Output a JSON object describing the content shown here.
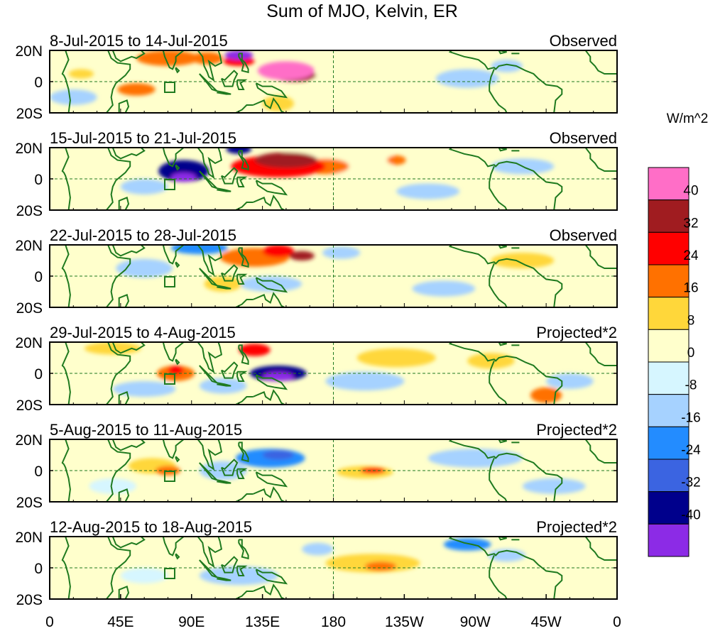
{
  "chart_data": {
    "type": "heatmap",
    "title": "Sum of MJO, Kelvin, ER",
    "units": "W/m^2",
    "colorbar": {
      "labels": [
        "40",
        "32",
        "24",
        "16",
        "8",
        "0",
        "-8",
        "-16",
        "-24",
        "-32",
        "-40"
      ],
      "colors": [
        "#ff6ec7",
        "#a01c20",
        "#ff0000",
        "#ff7100",
        "#ffd73a",
        "#ffffcc",
        "#d6f6ff",
        "#a6d2ff",
        "#238cff",
        "#3b64e1",
        "#00008c",
        "#8c2be6"
      ]
    },
    "x_ticks": [
      "0",
      "45E",
      "90E",
      "135E",
      "180",
      "135W",
      "90W",
      "45W",
      "0"
    ],
    "y_ticks": [
      "20N",
      "0",
      "20S"
    ],
    "lon_range": [
      0,
      360
    ],
    "lat_range": [
      -20,
      20
    ],
    "panels": [
      {
        "period": "8-Jul-2015 to 14-Jul-2015",
        "status": "Observed",
        "blobs": [
          [
            150,
            7,
            18,
            6,
            44
          ],
          [
            155,
            4,
            14,
            4,
            38
          ],
          [
            120,
            17,
            9,
            3,
            -44
          ],
          [
            75,
            15,
            20,
            5,
            18
          ],
          [
            100,
            15,
            10,
            4,
            24
          ],
          [
            120,
            13,
            10,
            3,
            30
          ],
          [
            55,
            -5,
            12,
            4,
            18
          ],
          [
            20,
            5,
            8,
            3,
            10
          ],
          [
            200,
            3,
            35,
            7,
            6
          ],
          [
            290,
            10,
            10,
            4,
            -14
          ],
          [
            265,
            2,
            20,
            6,
            -8
          ],
          [
            15,
            -10,
            15,
            5,
            -8
          ],
          [
            145,
            -14,
            10,
            5,
            10
          ],
          [
            245,
            -10,
            20,
            5,
            4
          ]
        ]
      },
      {
        "period": "15-Jul-2015 to 21-Jul-2015",
        "status": "Observed",
        "blobs": [
          [
            145,
            8,
            30,
            7,
            32
          ],
          [
            150,
            12,
            20,
            5,
            36
          ],
          [
            175,
            8,
            15,
            5,
            18
          ],
          [
            85,
            5,
            16,
            7,
            -34
          ],
          [
            85,
            1,
            8,
            3,
            -42
          ],
          [
            120,
            19,
            8,
            3,
            -32
          ],
          [
            180,
            12,
            40,
            9,
            6
          ],
          [
            60,
            -5,
            15,
            5,
            -10
          ],
          [
            220,
            12,
            6,
            3,
            20
          ],
          [
            300,
            8,
            20,
            5,
            -10
          ],
          [
            240,
            -8,
            20,
            5,
            -8
          ],
          [
            330,
            -15,
            15,
            5,
            8
          ]
        ]
      },
      {
        "period": "22-Jul-2015 to 28-Jul-2015",
        "status": "Observed",
        "blobs": [
          [
            130,
            12,
            22,
            6,
            24
          ],
          [
            145,
            16,
            10,
            4,
            30
          ],
          [
            160,
            13,
            8,
            3,
            36
          ],
          [
            110,
            -5,
            12,
            5,
            12
          ],
          [
            95,
            18,
            18,
            4,
            -16
          ],
          [
            60,
            5,
            18,
            6,
            -12
          ],
          [
            140,
            -5,
            20,
            5,
            -10
          ],
          [
            185,
            15,
            12,
            4,
            -10
          ],
          [
            350,
            10,
            8,
            4,
            8
          ],
          [
            300,
            10,
            20,
            5,
            10
          ],
          [
            250,
            -8,
            20,
            5,
            -8
          ],
          [
            320,
            -10,
            10,
            4,
            8
          ]
        ]
      },
      {
        "period": "29-Jul-2015 to 4-Aug-2015",
        "status": "Projected*2",
        "blobs": [
          [
            145,
            0,
            18,
            5,
            -36
          ],
          [
            145,
            -2,
            10,
            3,
            -44
          ],
          [
            130,
            15,
            10,
            4,
            32
          ],
          [
            80,
            0,
            12,
            5,
            20
          ],
          [
            80,
            2,
            5,
            3,
            30
          ],
          [
            40,
            16,
            18,
            4,
            14
          ],
          [
            220,
            10,
            25,
            6,
            12
          ],
          [
            280,
            8,
            15,
            5,
            10
          ],
          [
            315,
            -14,
            10,
            5,
            18
          ],
          [
            200,
            -5,
            25,
            6,
            -10
          ],
          [
            110,
            -8,
            15,
            5,
            -10
          ],
          [
            60,
            -10,
            20,
            5,
            -10
          ],
          [
            330,
            -5,
            15,
            5,
            -8
          ]
        ]
      },
      {
        "period": "5-Aug-2015 to 11-Aug-2015",
        "status": "Projected*2",
        "blobs": [
          [
            140,
            8,
            22,
            6,
            -16
          ],
          [
            145,
            10,
            10,
            3,
            -24
          ],
          [
            110,
            0,
            15,
            6,
            -10
          ],
          [
            65,
            3,
            15,
            5,
            14
          ],
          [
            75,
            0,
            8,
            3,
            20
          ],
          [
            200,
            -1,
            18,
            4,
            16
          ],
          [
            205,
            0,
            8,
            2,
            30
          ],
          [
            270,
            8,
            30,
            6,
            -8
          ],
          [
            320,
            -10,
            20,
            5,
            -8
          ],
          [
            40,
            -10,
            15,
            5,
            -6
          ],
          [
            230,
            -10,
            20,
            5,
            6
          ]
        ]
      },
      {
        "period": "12-Aug-2015 to 18-Aug-2015",
        "status": "Projected*2",
        "blobs": [
          [
            205,
            3,
            30,
            6,
            14
          ],
          [
            210,
            1,
            10,
            3,
            24
          ],
          [
            265,
            15,
            15,
            4,
            -16
          ],
          [
            290,
            8,
            12,
            4,
            -10
          ],
          [
            170,
            12,
            10,
            4,
            -8
          ],
          [
            120,
            -5,
            25,
            6,
            -8
          ],
          [
            60,
            -5,
            15,
            5,
            -6
          ],
          [
            310,
            -5,
            15,
            4,
            8
          ],
          [
            100,
            10,
            10,
            4,
            8
          ],
          [
            330,
            10,
            15,
            4,
            6
          ]
        ]
      }
    ]
  }
}
